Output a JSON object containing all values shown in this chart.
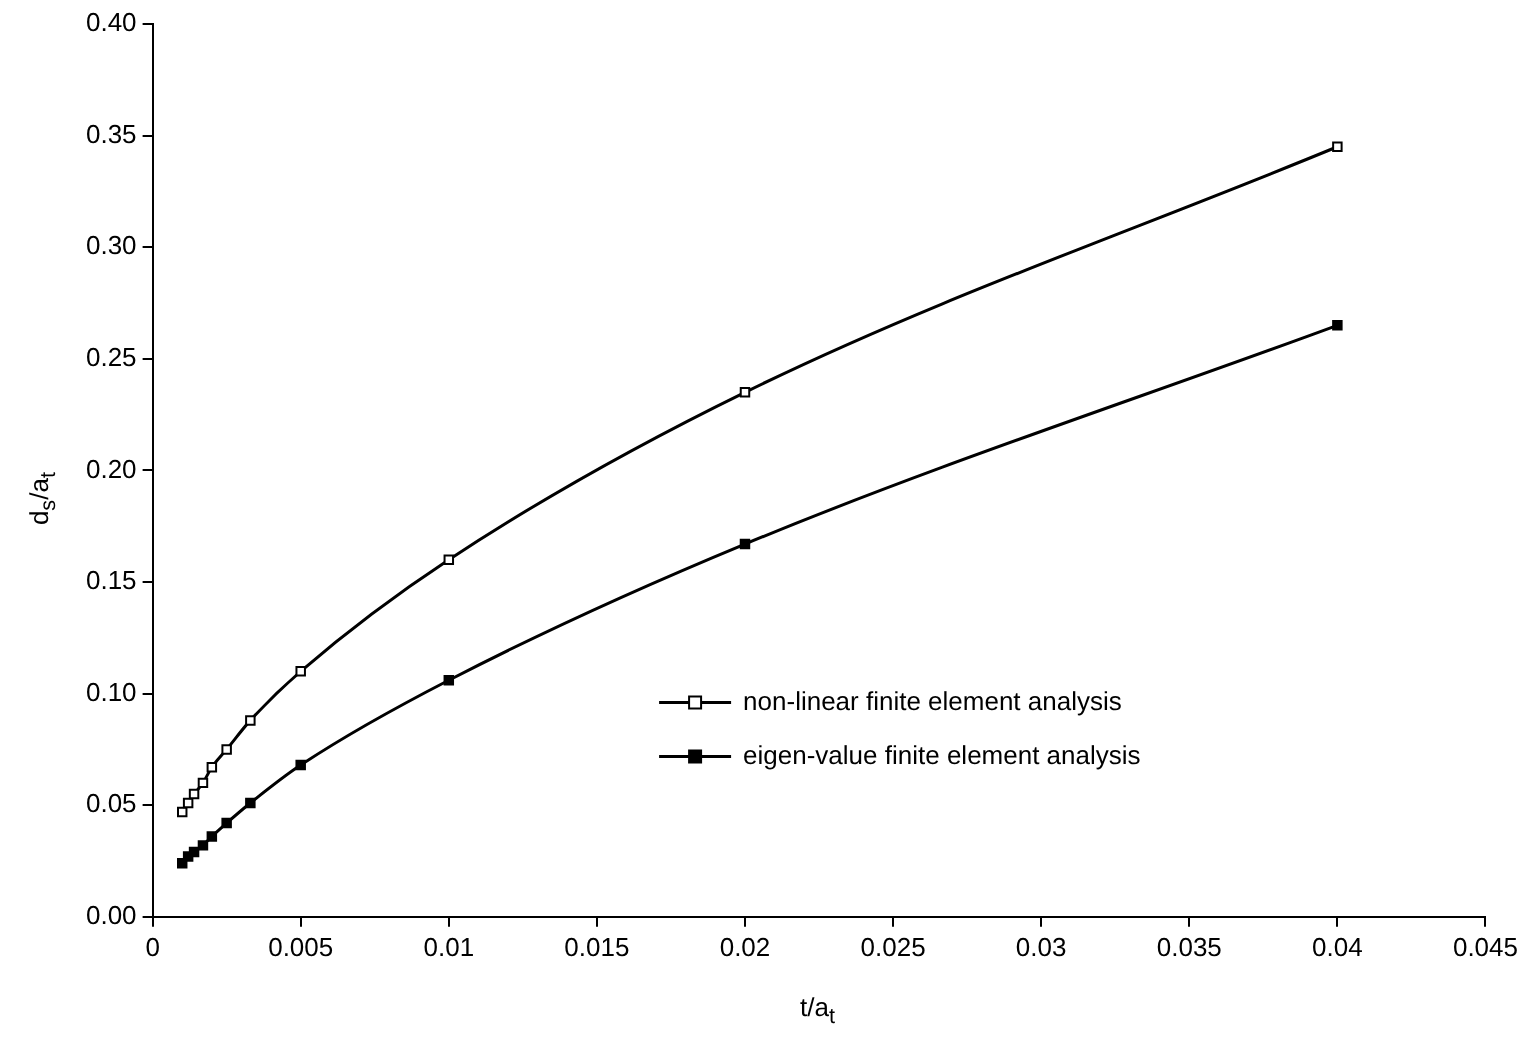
{
  "chart_data": {
    "type": "line",
    "xlabel": "t/a$_{t}$",
    "ylabel": "d$_{s}$/a$_{t}$",
    "xlim": [
      0,
      0.045
    ],
    "xticks": [
      0,
      0.005,
      0.01,
      0.015,
      0.02,
      0.025,
      0.03,
      0.035,
      0.04,
      0.045
    ],
    "ylim": [
      0,
      0.4
    ],
    "yticks": [
      {
        "value": 0,
        "label": "0.00"
      },
      0.05,
      {
        "value": 0.1,
        "label": "0.10"
      },
      0.15,
      {
        "value": 0.2,
        "label": "0.20"
      },
      0.25,
      {
        "value": 0.3,
        "label": "0.30"
      },
      0.35,
      {
        "value": 0.4,
        "label": "0.40"
      }
    ],
    "x": [
      0.001,
      0.0012,
      0.0014,
      0.0017,
      0.002,
      0.0025,
      0.0033,
      0.005,
      0.01,
      0.02,
      0.04
    ],
    "legend": "center right",
    "marker": "square",
    "line_style": "solid",
    "series": [
      {
        "name": "non-linear finite element analysis",
        "color": "#000000",
        "values": [
          0.047,
          0.051,
          0.055,
          0.06,
          0.067,
          0.075,
          0.088,
          0.11,
          0.16,
          0.235,
          0.345
        ]
      },
      {
        "name": "eigen-value finite element analysis",
        "color": "#000000",
        "values": [
          0.024,
          0.027,
          0.029,
          0.032,
          0.036,
          0.042,
          0.051,
          0.068,
          0.106,
          0.167,
          0.265
        ]
      }
    ]
  }
}
